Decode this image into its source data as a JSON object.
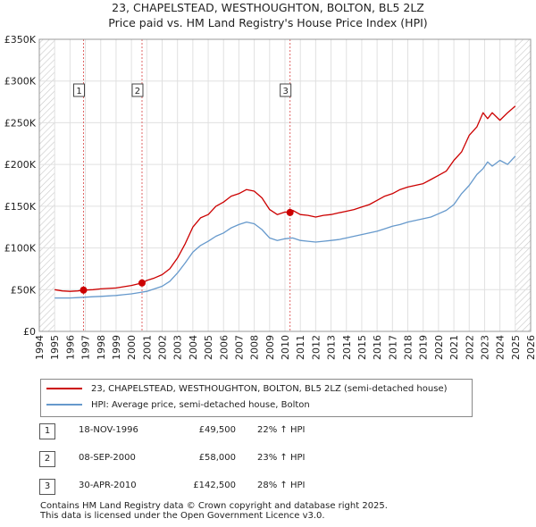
{
  "title": {
    "line1": "23, CHAPELSTEAD, WESTHOUGHTON, BOLTON, BL5 2LZ",
    "line2": "Price paid vs. HM Land Registry's House Price Index (HPI)"
  },
  "chart_data": {
    "type": "line",
    "title": "Price paid vs. HM Land Registry's House Price Index (HPI)",
    "xlim": [
      1994,
      2026
    ],
    "ylim": [
      0,
      350000
    ],
    "x_ticks": [
      1994,
      1995,
      1996,
      1997,
      1998,
      1999,
      2000,
      2001,
      2002,
      2003,
      2004,
      2005,
      2006,
      2007,
      2008,
      2009,
      2010,
      2011,
      2012,
      2013,
      2014,
      2015,
      2016,
      2017,
      2018,
      2019,
      2020,
      2021,
      2022,
      2023,
      2024,
      2025,
      2026
    ],
    "y_ticks": [
      {
        "value": 0,
        "label": "£0"
      },
      {
        "value": 50000,
        "label": "£50K"
      },
      {
        "value": 100000,
        "label": "£100K"
      },
      {
        "value": 150000,
        "label": "£150K"
      },
      {
        "value": 200000,
        "label": "£200K"
      },
      {
        "value": 250000,
        "label": "£250K"
      },
      {
        "value": 300000,
        "label": "£300K"
      },
      {
        "value": 350000,
        "label": "£350K"
      }
    ],
    "hatched_regions": [
      [
        1994,
        1995
      ],
      [
        2025,
        2026
      ]
    ],
    "series": [
      {
        "name": "23, CHAPELSTEAD, WESTHOUGHTON, BOLTON, BL5 2LZ (semi-detached house)",
        "color": "#cc0000",
        "x": [
          1995.0,
          1995.5,
          1996.0,
          1996.5,
          1996.88,
          1997.5,
          1998.0,
          1998.5,
          1999.0,
          1999.5,
          2000.0,
          2000.69,
          2001.0,
          2001.5,
          2002.0,
          2002.5,
          2003.0,
          2003.5,
          2004.0,
          2004.5,
          2005.0,
          2005.5,
          2006.0,
          2006.5,
          2007.0,
          2007.5,
          2008.0,
          2008.5,
          2009.0,
          2009.5,
          2010.0,
          2010.33,
          2010.5,
          2011.0,
          2011.5,
          2012.0,
          2012.5,
          2013.0,
          2013.5,
          2014.0,
          2014.5,
          2015.0,
          2015.5,
          2016.0,
          2016.5,
          2017.0,
          2017.5,
          2018.0,
          2018.5,
          2019.0,
          2019.5,
          2020.0,
          2020.5,
          2021.0,
          2021.5,
          2022.0,
          2022.5,
          2022.9,
          2023.2,
          2023.5,
          2024.0,
          2024.5,
          2025.0
        ],
        "values": [
          50000,
          48500,
          48000,
          48500,
          49500,
          50000,
          51000,
          51500,
          52000,
          53500,
          55000,
          58000,
          61000,
          64000,
          68000,
          75000,
          88000,
          105000,
          125000,
          136000,
          140000,
          150000,
          155000,
          162000,
          165000,
          170000,
          168000,
          160000,
          146000,
          140000,
          143000,
          142500,
          145000,
          140000,
          139000,
          137000,
          139000,
          140000,
          142000,
          144000,
          146000,
          149000,
          152000,
          157000,
          162000,
          165000,
          170000,
          173000,
          175000,
          177000,
          182000,
          187000,
          192000,
          205000,
          215000,
          235000,
          245000,
          262000,
          255000,
          262000,
          253000,
          262000,
          270000
        ]
      },
      {
        "name": "HPI: Average price, semi-detached house, Bolton",
        "color": "#6699cc",
        "x": [
          1995.0,
          1995.5,
          1996.0,
          1996.5,
          1997.0,
          1997.5,
          1998.0,
          1998.5,
          1999.0,
          1999.5,
          2000.0,
          2000.5,
          2001.0,
          2001.5,
          2002.0,
          2002.5,
          2003.0,
          2003.5,
          2004.0,
          2004.5,
          2005.0,
          2005.5,
          2006.0,
          2006.5,
          2007.0,
          2007.5,
          2008.0,
          2008.5,
          2009.0,
          2009.5,
          2010.0,
          2010.5,
          2011.0,
          2011.5,
          2012.0,
          2012.5,
          2013.0,
          2013.5,
          2014.0,
          2014.5,
          2015.0,
          2015.5,
          2016.0,
          2016.5,
          2017.0,
          2017.5,
          2018.0,
          2018.5,
          2019.0,
          2019.5,
          2020.0,
          2020.5,
          2021.0,
          2021.5,
          2022.0,
          2022.5,
          2022.9,
          2023.2,
          2023.5,
          2024.0,
          2024.5,
          2025.0
        ],
        "values": [
          40000,
          40000,
          40000,
          40500,
          41000,
          41500,
          42000,
          42500,
          43000,
          44000,
          45000,
          46500,
          48000,
          51000,
          54000,
          60000,
          70000,
          82000,
          95000,
          103000,
          108000,
          114000,
          118000,
          124000,
          128000,
          131000,
          129000,
          122000,
          112000,
          109000,
          111000,
          112000,
          109000,
          108000,
          107000,
          108000,
          109000,
          110000,
          112000,
          114000,
          116000,
          118000,
          120000,
          123000,
          126000,
          128000,
          131000,
          133000,
          135000,
          137000,
          141000,
          145000,
          152000,
          165000,
          175000,
          188000,
          195000,
          203000,
          198000,
          205000,
          200000,
          210000
        ]
      }
    ],
    "sales": [
      {
        "marker": "1",
        "x": 1996.88,
        "value": 49500
      },
      {
        "marker": "2",
        "x": 2000.69,
        "value": 58000
      },
      {
        "marker": "3",
        "x": 2010.33,
        "value": 142500
      }
    ]
  },
  "legend": {
    "property_label": "23, CHAPELSTEAD, WESTHOUGHTON, BOLTON, BL5 2LZ (semi-detached house)",
    "hpi_label": "HPI: Average price, semi-detached house, Bolton",
    "property_color": "#cc0000",
    "hpi_color": "#6699cc"
  },
  "sales_table": [
    {
      "num": "1",
      "date": "18-NOV-1996",
      "price": "£49,500",
      "hpi": "22% ↑ HPI"
    },
    {
      "num": "2",
      "date": "08-SEP-2000",
      "price": "£58,000",
      "hpi": "23% ↑ HPI"
    },
    {
      "num": "3",
      "date": "30-APR-2010",
      "price": "£142,500",
      "hpi": "28% ↑ HPI"
    }
  ],
  "footer": {
    "line1": "Contains HM Land Registry data © Crown copyright and database right 2025.",
    "line2": "This data is licensed under the Open Government Licence v3.0."
  }
}
